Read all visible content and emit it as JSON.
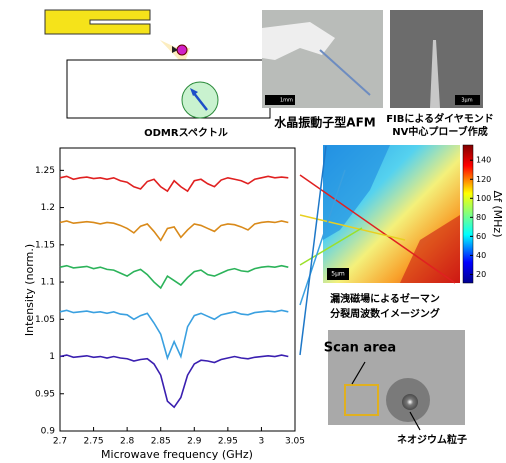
{
  "chart_data": {
    "type": "line",
    "title": "ODMRスペクトル",
    "xlabel": "Microwave frequency (GHz)",
    "ylabel": "Intensity (norm.)",
    "x": [
      2.7,
      2.71,
      2.72,
      2.73,
      2.74,
      2.75,
      2.76,
      2.77,
      2.78,
      2.79,
      2.8,
      2.81,
      2.82,
      2.83,
      2.84,
      2.85,
      2.86,
      2.87,
      2.88,
      2.89,
      2.9,
      2.91,
      2.92,
      2.93,
      2.94,
      2.95,
      2.96,
      2.97,
      2.98,
      2.99,
      3.0,
      3.01,
      3.02,
      3.03,
      3.04
    ],
    "series": [
      {
        "color": "#e02020",
        "values": [
          1.24,
          1.242,
          1.238,
          1.24,
          1.241,
          1.239,
          1.24,
          1.238,
          1.24,
          1.236,
          1.234,
          1.228,
          1.225,
          1.235,
          1.238,
          1.228,
          1.222,
          1.236,
          1.228,
          1.222,
          1.236,
          1.238,
          1.232,
          1.228,
          1.237,
          1.24,
          1.238,
          1.236,
          1.232,
          1.238,
          1.24,
          1.242,
          1.24,
          1.241,
          1.24
        ]
      },
      {
        "color": "#d98a1a",
        "values": [
          1.18,
          1.182,
          1.179,
          1.18,
          1.181,
          1.18,
          1.178,
          1.18,
          1.179,
          1.176,
          1.172,
          1.166,
          1.175,
          1.178,
          1.168,
          1.156,
          1.172,
          1.174,
          1.16,
          1.17,
          1.178,
          1.176,
          1.172,
          1.168,
          1.176,
          1.178,
          1.177,
          1.174,
          1.17,
          1.178,
          1.18,
          1.181,
          1.18,
          1.182,
          1.18
        ]
      },
      {
        "color": "#2cb35a",
        "values": [
          1.12,
          1.122,
          1.119,
          1.12,
          1.121,
          1.118,
          1.12,
          1.117,
          1.116,
          1.112,
          1.108,
          1.114,
          1.117,
          1.11,
          1.1,
          1.092,
          1.108,
          1.102,
          1.096,
          1.106,
          1.114,
          1.116,
          1.11,
          1.108,
          1.112,
          1.116,
          1.118,
          1.115,
          1.114,
          1.118,
          1.12,
          1.121,
          1.12,
          1.122,
          1.12
        ]
      },
      {
        "color": "#3aa0e0",
        "values": [
          1.06,
          1.062,
          1.059,
          1.06,
          1.061,
          1.059,
          1.06,
          1.058,
          1.06,
          1.057,
          1.056,
          1.05,
          1.055,
          1.058,
          1.045,
          1.03,
          0.998,
          1.02,
          1.0,
          1.04,
          1.055,
          1.058,
          1.054,
          1.05,
          1.056,
          1.058,
          1.06,
          1.057,
          1.056,
          1.059,
          1.06,
          1.061,
          1.06,
          1.062,
          1.06
        ]
      },
      {
        "color": "#3a1fb0",
        "values": [
          1.0,
          1.002,
          0.999,
          1.0,
          1.001,
          0.999,
          1.0,
          0.998,
          1.0,
          0.998,
          0.997,
          0.994,
          0.996,
          0.997,
          0.99,
          0.975,
          0.94,
          0.932,
          0.945,
          0.975,
          0.99,
          0.995,
          0.994,
          0.992,
          0.996,
          0.998,
          1.0,
          0.998,
          0.997,
          0.999,
          1.0,
          1.001,
          1.0,
          1.002,
          1.0
        ]
      }
    ],
    "xlim": [
      2.7,
      3.05
    ],
    "xticks": [
      2.7,
      2.75,
      2.8,
      2.85,
      2.9,
      2.95,
      3,
      3.05
    ],
    "ylim": [
      0.9,
      1.28
    ],
    "yticks": [
      0.9,
      0.95,
      1,
      1.05,
      1.1,
      1.15,
      1.2,
      1.25
    ]
  },
  "figures": {
    "afm_caption": "水晶振動子型AFM",
    "fib_caption": [
      "FIBによるダイヤモンド",
      "NV中心プローブ作成"
    ],
    "scale_afm": "1mm",
    "scale_fib": "3μm",
    "scale_map": "5μm",
    "imaging_caption": [
      "漏洩磁場によるゼーマン",
      "分裂周波数イメージング"
    ],
    "scan_area": "Scan area",
    "particle_caption": "ネオジウム粒子",
    "colorbar": {
      "label": "Δf (MHz)",
      "lim": [
        11,
        156
      ],
      "ticks": [
        20,
        40,
        60,
        80,
        100,
        120,
        140
      ]
    }
  }
}
